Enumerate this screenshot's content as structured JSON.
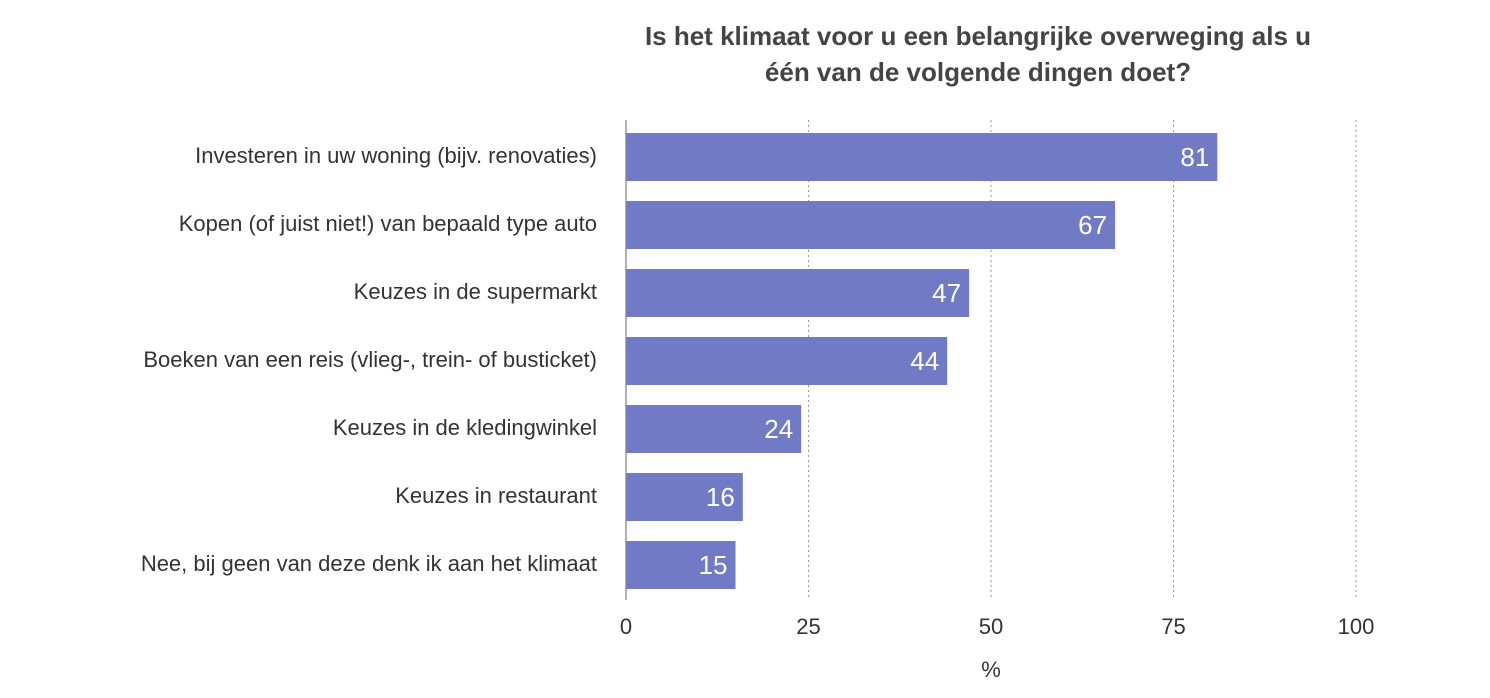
{
  "chart_data": {
    "type": "bar",
    "orientation": "horizontal",
    "title": "Is het klimaat voor u een belangrijke overweging als u één van de volgende dingen doet?",
    "categories": [
      "Investeren in uw woning (bijv. renovaties)",
      "Kopen (of juist niet!) van bepaald type auto",
      "Keuzes in de supermarkt",
      "Boeken van een reis (vlieg-, trein- of busticket)",
      "Keuzes in de kledingwinkel",
      "Keuzes in restaurant",
      "Nee, bij geen van deze denk ik aan het klimaat"
    ],
    "values": [
      81,
      67,
      47,
      44,
      24,
      16,
      15
    ],
    "color": "#717bc5",
    "xlabel": "%",
    "xlim": [
      0,
      100
    ],
    "xticks": [
      0,
      25,
      50,
      75,
      100
    ],
    "grid": true
  }
}
